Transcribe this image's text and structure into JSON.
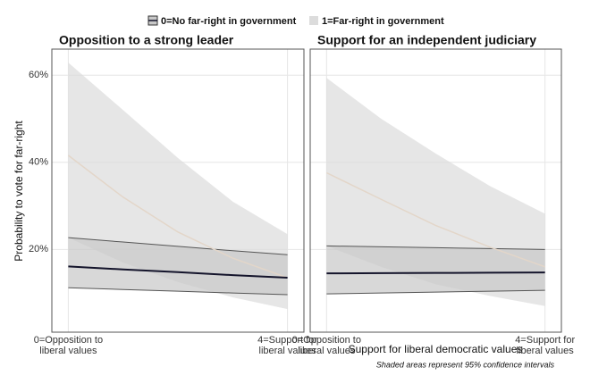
{
  "chart_data": [
    {
      "type": "line",
      "title": "Opposition to a strong leader",
      "x": [
        0,
        1,
        2,
        3,
        4
      ],
      "series": [
        {
          "name": "0=No far-right in government",
          "color": "#14142b",
          "band_color": "#c8c8c8",
          "values": [
            16.1,
            15.4,
            14.8,
            14.1,
            13.5
          ],
          "lower": [
            11.2,
            10.8,
            10.4,
            10.0,
            9.6
          ],
          "upper": [
            22.7,
            21.7,
            20.7,
            19.7,
            18.8
          ]
        },
        {
          "name": "1=Far-right in government",
          "color": "#e3d6c9",
          "band_color": "#dcdcdc",
          "values": [
            41.6,
            32.0,
            24.0,
            18.0,
            13.5
          ],
          "lower": [
            22.7,
            17.0,
            12.5,
            9.0,
            6.3
          ],
          "upper": [
            62.9,
            52.0,
            41.0,
            31.0,
            23.5
          ]
        }
      ],
      "xlim": [
        -0.3,
        4.3
      ],
      "ylim": [
        1,
        66
      ],
      "xticks": [
        {
          "value": 0,
          "label": "0=Opposition to\nliberal values"
        },
        {
          "value": 4,
          "label": "4=Support for\nliberal values"
        }
      ],
      "yticks": [
        {
          "value": 20,
          "label": "20%"
        },
        {
          "value": 40,
          "label": "40%"
        },
        {
          "value": 60,
          "label": "60%"
        }
      ],
      "grid": true
    },
    {
      "type": "line",
      "title": "Support for an independent judiciary",
      "x": [
        0,
        1,
        2,
        3,
        4
      ],
      "series": [
        {
          "name": "0=No far-right in government",
          "color": "#14142b",
          "band_color": "#c8c8c8",
          "values": [
            14.5,
            14.55,
            14.6,
            14.65,
            14.7
          ],
          "lower": [
            9.8,
            10.0,
            10.2,
            10.4,
            10.6
          ],
          "upper": [
            20.8,
            20.6,
            20.4,
            20.2,
            20.0
          ]
        },
        {
          "name": "1=Far-right in government",
          "color": "#e3d6c9",
          "band_color": "#dcdcdc",
          "values": [
            37.6,
            31.5,
            25.5,
            20.5,
            16.0
          ],
          "lower": [
            20.8,
            16.0,
            12.0,
            9.3,
            7.0
          ],
          "upper": [
            59.4,
            50.0,
            42.0,
            34.5,
            28.2
          ]
        }
      ],
      "xlim": [
        -0.3,
        4.3
      ],
      "ylim": [
        1,
        66
      ],
      "xticks": [
        {
          "value": 0,
          "label": "0=Opposition to\nliberal values"
        },
        {
          "value": 4,
          "label": "4=Support for\nliberal values"
        }
      ],
      "yticks": [
        {
          "value": 20,
          "label": "20%"
        },
        {
          "value": 40,
          "label": "40%"
        },
        {
          "value": 60,
          "label": "60%"
        }
      ],
      "grid": true
    }
  ],
  "y_label": "Probability to vote for far-right",
  "x_label": "Support for liberal democratic values",
  "note": "Shaded areas represent 95% confidence intervals"
}
